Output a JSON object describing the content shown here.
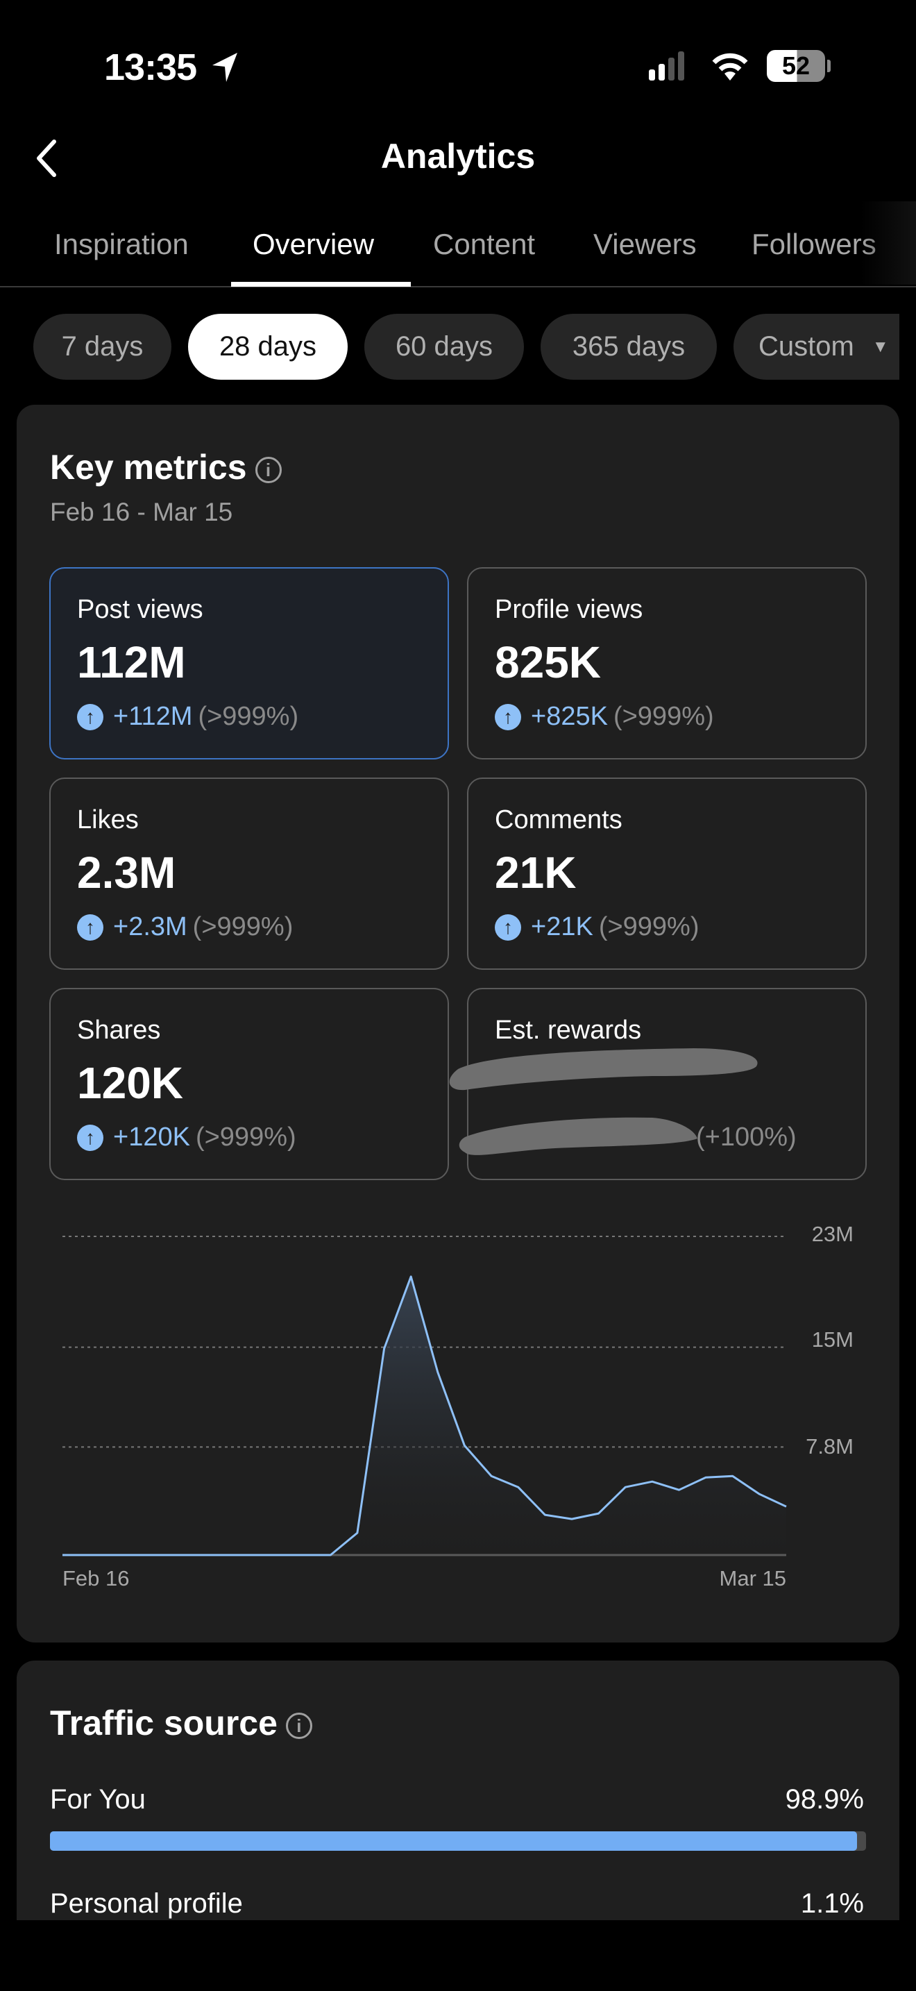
{
  "status_bar": {
    "time": "13:35",
    "battery": "52",
    "icons": [
      "location-arrow-icon",
      "cellular-signal-icon",
      "wifi-icon",
      "battery-icon"
    ]
  },
  "header": {
    "title": "Analytics",
    "back_icon": "chevron-left-icon"
  },
  "tabs": [
    {
      "label": "Inspiration"
    },
    {
      "label": "Overview",
      "active": true
    },
    {
      "label": "Content"
    },
    {
      "label": "Viewers"
    },
    {
      "label": "Followers"
    }
  ],
  "ranges": [
    {
      "label": "7 days"
    },
    {
      "label": "28 days",
      "active": true
    },
    {
      "label": "60 days"
    },
    {
      "label": "365 days"
    },
    {
      "label": "Custom"
    }
  ],
  "key_metrics": {
    "title": "Key metrics",
    "date_range": "Feb 16 - Mar 15",
    "metrics": [
      {
        "label": "Post views",
        "value": "112M",
        "delta": "+112M",
        "pct": "(>999%)",
        "selected": true
      },
      {
        "label": "Profile views",
        "value": "825K",
        "delta": "+825K",
        "pct": "(>999%)"
      },
      {
        "label": "Likes",
        "value": "2.3M",
        "delta": "+2.3M",
        "pct": "(>999%)"
      },
      {
        "label": "Comments",
        "value": "21K",
        "delta": "+21K",
        "pct": "(>999%)"
      },
      {
        "label": "Shares",
        "value": "120K",
        "delta": "+120K",
        "pct": "(>999%)"
      },
      {
        "label": "Est. rewards",
        "pct": "(+100%)",
        "redacted": true
      }
    ]
  },
  "chart_data": {
    "type": "area",
    "x_start": "Feb 16",
    "x_end": "Mar 15",
    "xticks": [
      "Feb 16",
      "Mar 15"
    ],
    "yticks": [
      "23M",
      "15M",
      "7.8M"
    ],
    "ytick_values": [
      23,
      15,
      7.8
    ],
    "ylim": [
      0,
      23
    ],
    "grid": true,
    "values_millions": [
      0,
      0,
      0,
      0,
      0,
      0,
      0,
      0,
      0,
      0,
      0,
      1.6,
      14.9,
      20.1,
      13.2,
      7.9,
      5.7,
      4.9,
      2.9,
      2.6,
      3.0,
      4.9,
      5.3,
      4.7,
      5.6,
      5.7,
      4.4,
      3.5
    ],
    "line_color": "#8ec0f7"
  },
  "traffic_source": {
    "title": "Traffic source",
    "rows": [
      {
        "label": "For You",
        "value": "98.9%",
        "fraction": 0.989
      },
      {
        "label": "Personal profile",
        "value": "1.1%",
        "fraction": 0.011
      }
    ],
    "bar_color": "#72adf4"
  }
}
